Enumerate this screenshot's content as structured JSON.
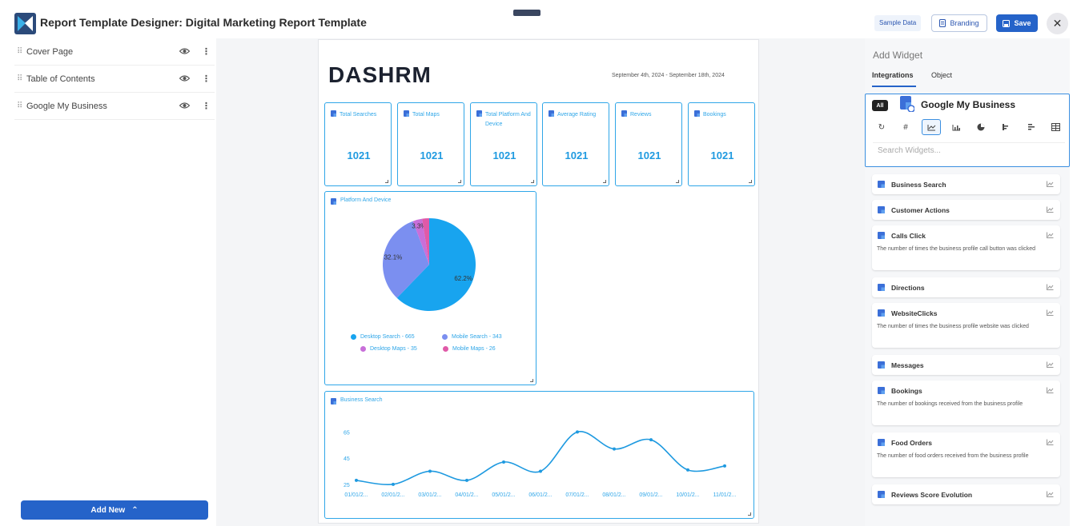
{
  "header": {
    "title": "Report Template Designer: Digital Marketing Report Template",
    "sample_data_label": "Sample Data",
    "branding_label": "Branding",
    "save_label": "Save",
    "close_glyph": "✕"
  },
  "sidebar": {
    "items": [
      {
        "label": "Cover Page"
      },
      {
        "label": "Table of Contents"
      },
      {
        "label": "Google My Business"
      }
    ],
    "add_new_label": "Add New",
    "add_new_glyph": "⌃"
  },
  "report": {
    "brand_text": "DASHRM",
    "date_range": "September 4th, 2024 - September 18th, 2024",
    "kpis": [
      {
        "label": "Total Searches",
        "value": "1021"
      },
      {
        "label": "Total Maps",
        "value": "1021"
      },
      {
        "label": "Total Platform And Device",
        "value": "1021"
      },
      {
        "label": "Average Rating",
        "value": "1021"
      },
      {
        "label": "Reviews",
        "value": "1021"
      },
      {
        "label": "Bookings",
        "value": "1021"
      }
    ],
    "pie_panel_title": "Platform And Device",
    "line_panel_title": "Business Search"
  },
  "chart_data": [
    {
      "type": "pie",
      "title": "Platform And Device",
      "slices": [
        {
          "label": "Desktop Search - 665",
          "value": 665,
          "percent_label": "62.2%",
          "color": "#18a4ef"
        },
        {
          "label": "Mobile Search - 343",
          "value": 343,
          "percent_label": "32.1%",
          "color": "#7b8ff0"
        },
        {
          "label": "Desktop Maps - 35",
          "value": 35,
          "percent_label": "3.3%",
          "color": "#c86fd9"
        },
        {
          "label": "Mobile Maps - 26",
          "value": 26,
          "percent_label": "",
          "color": "#e05aa8"
        }
      ]
    },
    {
      "type": "line",
      "title": "Business Search",
      "categories": [
        "01/01/2...",
        "02/01/2...",
        "03/01/2...",
        "04/01/2...",
        "05/01/2...",
        "06/01/2...",
        "07/01/2...",
        "08/01/2...",
        "09/01/2...",
        "10/01/2...",
        "11/01/2..."
      ],
      "values": [
        28,
        25,
        35,
        28,
        42,
        35,
        65,
        52,
        59,
        36,
        39
      ],
      "yticks": [
        25,
        45,
        65
      ],
      "ylim": [
        20,
        75
      ],
      "color": "#1f9ae0"
    }
  ],
  "widget_panel": {
    "title": "Add Widget",
    "tabs": [
      "Integrations",
      "Object"
    ],
    "all_label": "All",
    "integration_title": "Google My Business",
    "search_placeholder": "Search Widgets...",
    "widgets": [
      {
        "title": "Business Search",
        "desc": ""
      },
      {
        "title": "Customer Actions",
        "desc": ""
      },
      {
        "title": "Calls Click",
        "desc": "The number of times the business profile call button was clicked"
      },
      {
        "title": "Directions",
        "desc": ""
      },
      {
        "title": "WebsiteClicks",
        "desc": "The number of times the business profile website was clicked"
      },
      {
        "title": "Messages",
        "desc": ""
      },
      {
        "title": "Bookings",
        "desc": "The number of bookings received from the business profile"
      },
      {
        "title": "Food Orders",
        "desc": "The number of food orders received from the business profile"
      },
      {
        "title": "Reviews Score Evolution",
        "desc": ""
      }
    ]
  }
}
